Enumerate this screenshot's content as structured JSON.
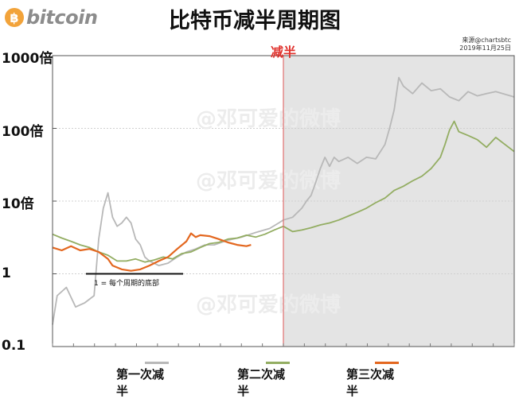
{
  "header": {
    "logo_symbol": "฿",
    "logo_text": "bitcoin",
    "title": "比特币减半周期图",
    "source_line1": "来源@chartsbtc",
    "source_line2": "2019年11月25日"
  },
  "annotations": {
    "halving_label": "减半",
    "bottom_note": "1 = 每个周期的底部",
    "watermark": "@邓可爱的微博"
  },
  "colors": {
    "cycle1": "#b8b8b8",
    "cycle2": "#93ad62",
    "cycle3": "#e3671f",
    "halving_line": "#e07070",
    "shade": "#e4e4e4",
    "grid": "#d0d0d0"
  },
  "chart_data": {
    "type": "line",
    "title": "比特币减半周期图",
    "y_scale": "log",
    "ylim": [
      0.1,
      1000
    ],
    "yticks": [
      {
        "value": 0.1,
        "label": "0.1"
      },
      {
        "value": 1,
        "label": "1"
      },
      {
        "value": 10,
        "label": "10倍"
      },
      {
        "value": 100,
        "label": "100倍"
      },
      {
        "value": 1000,
        "label": "1000倍"
      }
    ],
    "x_range": [
      0,
      100
    ],
    "halving_x": 50,
    "legend_position": "bottom",
    "series": [
      {
        "name": "第一次减半",
        "color": "#b8b8b8",
        "points": [
          [
            0,
            0.2
          ],
          [
            1,
            0.5
          ],
          [
            3,
            0.65
          ],
          [
            5,
            0.35
          ],
          [
            7,
            0.4
          ],
          [
            9,
            0.5
          ],
          [
            10,
            3
          ],
          [
            11,
            8
          ],
          [
            12,
            13
          ],
          [
            13,
            6
          ],
          [
            14,
            4.5
          ],
          [
            15,
            5
          ],
          [
            16,
            6
          ],
          [
            17,
            5
          ],
          [
            18,
            3
          ],
          [
            19,
            2.5
          ],
          [
            20,
            1.7
          ],
          [
            21,
            1.5
          ],
          [
            23,
            1.3
          ],
          [
            25,
            1.4
          ],
          [
            27,
            1.7
          ],
          [
            29,
            2
          ],
          [
            31,
            2.2
          ],
          [
            33,
            2.5
          ],
          [
            35,
            2.5
          ],
          [
            38,
            2.9
          ],
          [
            41,
            3.2
          ],
          [
            44,
            3.7
          ],
          [
            47,
            4.2
          ],
          [
            49,
            5
          ],
          [
            50,
            5.5
          ],
          [
            52,
            6
          ],
          [
            54,
            8
          ],
          [
            55,
            10
          ],
          [
            56,
            12
          ],
          [
            57,
            18
          ],
          [
            58,
            28
          ],
          [
            59,
            40
          ],
          [
            60,
            30
          ],
          [
            61,
            40
          ],
          [
            62,
            35
          ],
          [
            64,
            40
          ],
          [
            66,
            33
          ],
          [
            68,
            40
          ],
          [
            70,
            38
          ],
          [
            72,
            60
          ],
          [
            73,
            100
          ],
          [
            74,
            180
          ],
          [
            75,
            500
          ],
          [
            76,
            380
          ],
          [
            78,
            300
          ],
          [
            80,
            420
          ],
          [
            82,
            330
          ],
          [
            84,
            350
          ],
          [
            86,
            270
          ],
          [
            88,
            240
          ],
          [
            90,
            320
          ],
          [
            92,
            280
          ],
          [
            94,
            300
          ],
          [
            96,
            320
          ],
          [
            100,
            270
          ]
        ]
      },
      {
        "name": "第二次减半",
        "color": "#93ad62",
        "points": [
          [
            0,
            3.5
          ],
          [
            2,
            3.1
          ],
          [
            4,
            2.8
          ],
          [
            6,
            2.5
          ],
          [
            8,
            2.3
          ],
          [
            10,
            2
          ],
          [
            12,
            1.8
          ],
          [
            14,
            1.5
          ],
          [
            16,
            1.5
          ],
          [
            18,
            1.6
          ],
          [
            20,
            1.45
          ],
          [
            22,
            1.55
          ],
          [
            24,
            1.7
          ],
          [
            26,
            1.6
          ],
          [
            28,
            1.9
          ],
          [
            30,
            2
          ],
          [
            32,
            2.3
          ],
          [
            34,
            2.6
          ],
          [
            36,
            2.7
          ],
          [
            38,
            3
          ],
          [
            40,
            3.1
          ],
          [
            42,
            3.4
          ],
          [
            44,
            3.2
          ],
          [
            46,
            3.5
          ],
          [
            48,
            4
          ],
          [
            50,
            4.5
          ],
          [
            52,
            3.8
          ],
          [
            54,
            4
          ],
          [
            56,
            4.3
          ],
          [
            58,
            4.7
          ],
          [
            60,
            5
          ],
          [
            62,
            5.5
          ],
          [
            64,
            6.2
          ],
          [
            66,
            7
          ],
          [
            68,
            8
          ],
          [
            70,
            9.5
          ],
          [
            72,
            11
          ],
          [
            74,
            14
          ],
          [
            76,
            16
          ],
          [
            78,
            19
          ],
          [
            80,
            22
          ],
          [
            82,
            28
          ],
          [
            84,
            40
          ],
          [
            85,
            60
          ],
          [
            86,
            95
          ],
          [
            87,
            125
          ],
          [
            88,
            90
          ],
          [
            90,
            80
          ],
          [
            92,
            70
          ],
          [
            94,
            55
          ],
          [
            96,
            75
          ],
          [
            98,
            60
          ],
          [
            100,
            48
          ]
        ]
      },
      {
        "name": "第三次减半",
        "color": "#e3671f",
        "points": [
          [
            0,
            2.3
          ],
          [
            2,
            2.1
          ],
          [
            4,
            2.4
          ],
          [
            6,
            2.1
          ],
          [
            8,
            2.2
          ],
          [
            10,
            2
          ],
          [
            12,
            1.6
          ],
          [
            13,
            1.3
          ],
          [
            15,
            1.15
          ],
          [
            17,
            1.1
          ],
          [
            19,
            1.15
          ],
          [
            21,
            1.3
          ],
          [
            23,
            1.5
          ],
          [
            25,
            1.7
          ],
          [
            27,
            2.2
          ],
          [
            29,
            2.8
          ],
          [
            30,
            3.6
          ],
          [
            31,
            3.2
          ],
          [
            32,
            3.4
          ],
          [
            34,
            3.3
          ],
          [
            36,
            3
          ],
          [
            38,
            2.7
          ],
          [
            40,
            2.5
          ],
          [
            42,
            2.4
          ],
          [
            43,
            2.5
          ]
        ]
      }
    ]
  }
}
